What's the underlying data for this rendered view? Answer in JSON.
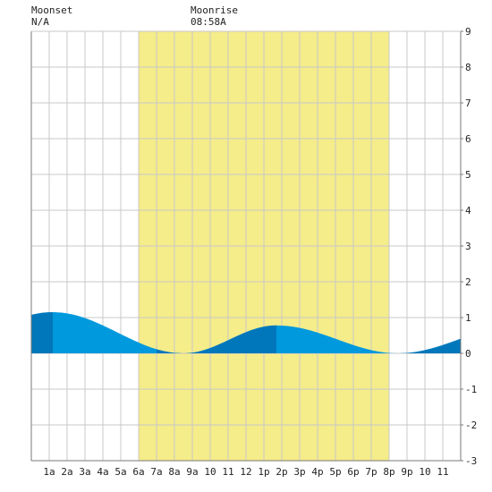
{
  "header": {
    "moonset_label": "Moonset",
    "moonset_value": "N/A",
    "moonrise_label": "Moonrise",
    "moonrise_value": "08:58A"
  },
  "chart_data": {
    "type": "area",
    "x_range_hours": [
      0,
      24
    ],
    "ylim": [
      -3,
      9
    ],
    "y_ticks": [
      "-3",
      "-2",
      "-1",
      "0",
      "1",
      "2",
      "3",
      "4",
      "5",
      "6",
      "7",
      "8",
      "9"
    ],
    "x_tick_labels": [
      "1a",
      "2a",
      "3a",
      "4a",
      "5a",
      "6a",
      "7a",
      "8a",
      "9a",
      "10",
      "11",
      "12",
      "1p",
      "2p",
      "3p",
      "4p",
      "5p",
      "6p",
      "7p",
      "8p",
      "9p",
      "10",
      "11"
    ],
    "daylight_hours": [
      6,
      20
    ],
    "colors": {
      "tide": "#0099dd",
      "tide_night": "#0077bb",
      "daylight": "#f5ec8a",
      "grid": "#c8c8c8",
      "axis": "#7a7a7a"
    },
    "tide_extremes": [
      {
        "hour": 1.2,
        "height": 1.15
      },
      {
        "hour": 8.5,
        "height": 0.0
      },
      {
        "hour": 13.7,
        "height": 0.78
      },
      {
        "hour": 20.5,
        "height": 0.0
      }
    ],
    "tide_end": {
      "hour": 24,
      "height": 0.65
    },
    "tide_start": {
      "hour": 0,
      "height": 1.0
    },
    "grid": true
  }
}
